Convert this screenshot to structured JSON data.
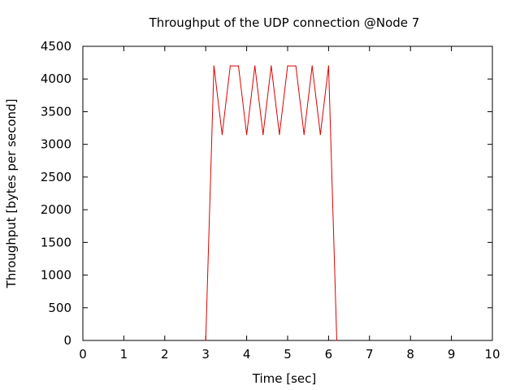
{
  "chart_data": {
    "type": "line",
    "title": "Throughput of the UDP connection @Node 7",
    "xlabel": "Time [sec]",
    "ylabel": "Throughput [bytes per second]",
    "xlim": [
      0,
      10
    ],
    "ylim": [
      0,
      4500
    ],
    "xticks": [
      "0",
      "1",
      "2",
      "3",
      "4",
      "5",
      "6",
      "7",
      "8",
      "9",
      "10"
    ],
    "yticks": [
      "0",
      "500",
      "1000",
      "1500",
      "2000",
      "2500",
      "3000",
      "3500",
      "4000",
      "4500"
    ],
    "grid": false,
    "series": [
      {
        "color": "#dd0000",
        "x": [
          3.0,
          3.2,
          3.4,
          3.6,
          3.8,
          4.0,
          4.2,
          4.4,
          4.6,
          4.8,
          5.0,
          5.2,
          5.4,
          5.6,
          5.8,
          6.0,
          6.2
        ],
        "y": [
          0,
          4200,
          3150,
          4200,
          4200,
          3150,
          4200,
          3150,
          4200,
          3150,
          4200,
          4200,
          3150,
          4200,
          3150,
          4200,
          0
        ]
      }
    ]
  }
}
